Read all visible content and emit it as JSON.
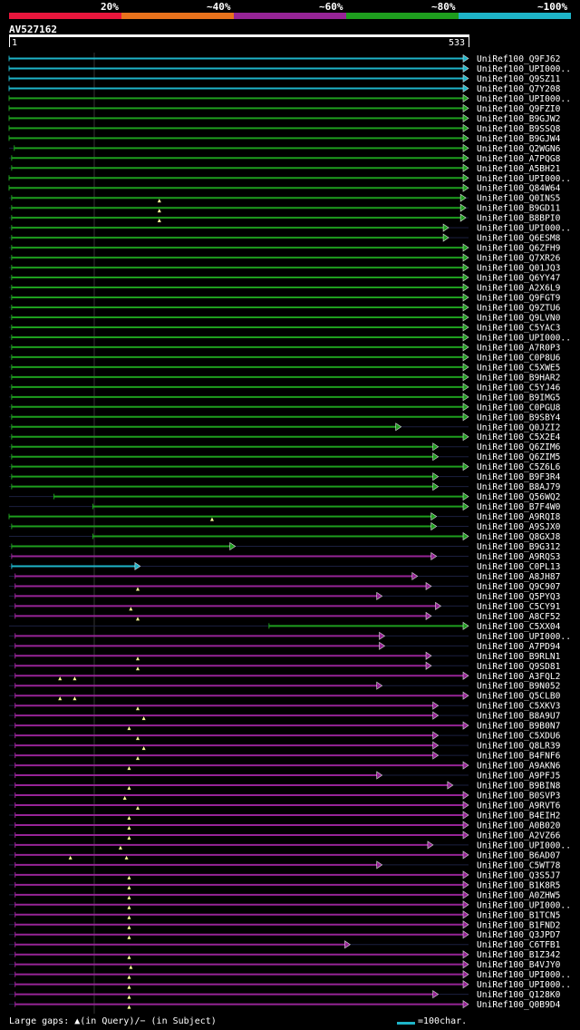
{
  "legend": [
    {
      "label": "20%",
      "color": "#e8163c"
    },
    {
      "label": "~40%",
      "color": "#e8721c"
    },
    {
      "label": "~60%",
      "color": "#962496"
    },
    {
      "label": "~80%",
      "color": "#1e9e1e"
    },
    {
      "label": "~100%",
      "color": "#1eb4c8"
    }
  ],
  "query": {
    "name": "AV527162",
    "start": "1",
    "end": "533"
  },
  "chart_data": {
    "type": "alignment-overview",
    "title": "AV527162",
    "query_length": 533,
    "hits": [
      {
        "name": "UniRef100_Q9FJ62",
        "color": "#1eb4c8",
        "start": 1,
        "end": 533,
        "gaps": []
      },
      {
        "name": "UniRef100_UPI000..",
        "color": "#1eb4c8",
        "start": 1,
        "end": 533,
        "gaps": []
      },
      {
        "name": "UniRef100_Q9SZ11",
        "color": "#1eb4c8",
        "start": 1,
        "end": 533,
        "gaps": []
      },
      {
        "name": "UniRef100_Q7Y208",
        "color": "#1eb4c8",
        "start": 1,
        "end": 533,
        "gaps": []
      },
      {
        "name": "UniRef100_UPI000..",
        "color": "#1e9e1e",
        "start": 1,
        "end": 533,
        "gaps": []
      },
      {
        "name": "UniRef100_Q9FZI0",
        "color": "#1e9e1e",
        "start": 1,
        "end": 533,
        "gaps": []
      },
      {
        "name": "UniRef100_B9GJW2",
        "color": "#1e9e1e",
        "start": 1,
        "end": 533,
        "gaps": []
      },
      {
        "name": "UniRef100_B9SSQ8",
        "color": "#1e9e1e",
        "start": 1,
        "end": 533,
        "gaps": []
      },
      {
        "name": "UniRef100_B9GJW4",
        "color": "#1e9e1e",
        "start": 1,
        "end": 533,
        "gaps": []
      },
      {
        "name": "UniRef100_Q2WGN6",
        "color": "#1e9e1e",
        "start": 7,
        "end": 533,
        "gaps": []
      },
      {
        "name": "UniRef100_A7PQG8",
        "color": "#1e9e1e",
        "start": 4,
        "end": 533,
        "gaps": []
      },
      {
        "name": "UniRef100_A5BH21",
        "color": "#1e9e1e",
        "start": 4,
        "end": 533,
        "gaps": []
      },
      {
        "name": "UniRef100_UPI000..",
        "color": "#1e9e1e",
        "start": 1,
        "end": 533,
        "gaps": []
      },
      {
        "name": "UniRef100_Q84W64",
        "color": "#1e9e1e",
        "start": 1,
        "end": 533,
        "gaps": []
      },
      {
        "name": "UniRef100_Q0INS5",
        "color": "#1e9e1e",
        "start": 4,
        "end": 530,
        "gaps": [
          175
        ]
      },
      {
        "name": "UniRef100_B9GD11",
        "color": "#1e9e1e",
        "start": 4,
        "end": 530,
        "gaps": [
          175
        ]
      },
      {
        "name": "UniRef100_B8BPI0",
        "color": "#1e9e1e",
        "start": 4,
        "end": 530,
        "gaps": [
          175
        ]
      },
      {
        "name": "UniRef100_UPI000..",
        "color": "#1e9e1e",
        "start": 4,
        "end": 510,
        "gaps": []
      },
      {
        "name": "UniRef100_Q6ESM8",
        "color": "#1e9e1e",
        "start": 4,
        "end": 510,
        "gaps": []
      },
      {
        "name": "UniRef100_Q6ZFH9",
        "color": "#1e9e1e",
        "start": 4,
        "end": 533,
        "gaps": []
      },
      {
        "name": "UniRef100_Q7XR26",
        "color": "#1e9e1e",
        "start": 4,
        "end": 533,
        "gaps": []
      },
      {
        "name": "UniRef100_Q01JQ3",
        "color": "#1e9e1e",
        "start": 4,
        "end": 533,
        "gaps": []
      },
      {
        "name": "UniRef100_Q6YY47",
        "color": "#1e9e1e",
        "start": 4,
        "end": 533,
        "gaps": []
      },
      {
        "name": "UniRef100_A2X6L9",
        "color": "#1e9e1e",
        "start": 4,
        "end": 533,
        "gaps": []
      },
      {
        "name": "UniRef100_Q9FGT9",
        "color": "#1e9e1e",
        "start": 4,
        "end": 533,
        "gaps": []
      },
      {
        "name": "UniRef100_Q9ZTU6",
        "color": "#1e9e1e",
        "start": 4,
        "end": 533,
        "gaps": []
      },
      {
        "name": "UniRef100_Q9LVN0",
        "color": "#1e9e1e",
        "start": 4,
        "end": 533,
        "gaps": []
      },
      {
        "name": "UniRef100_C5YAC3",
        "color": "#1e9e1e",
        "start": 4,
        "end": 533,
        "gaps": []
      },
      {
        "name": "UniRef100_UPI000..",
        "color": "#1e9e1e",
        "start": 4,
        "end": 533,
        "gaps": []
      },
      {
        "name": "UniRef100_A7R0P3",
        "color": "#1e9e1e",
        "start": 4,
        "end": 533,
        "gaps": []
      },
      {
        "name": "UniRef100_C0P8U6",
        "color": "#1e9e1e",
        "start": 4,
        "end": 533,
        "gaps": []
      },
      {
        "name": "UniRef100_C5XWE5",
        "color": "#1e9e1e",
        "start": 4,
        "end": 533,
        "gaps": []
      },
      {
        "name": "UniRef100_B9HAR2",
        "color": "#1e9e1e",
        "start": 4,
        "end": 533,
        "gaps": []
      },
      {
        "name": "UniRef100_C5YJ46",
        "color": "#1e9e1e",
        "start": 4,
        "end": 533,
        "gaps": []
      },
      {
        "name": "UniRef100_B9IMG5",
        "color": "#1e9e1e",
        "start": 4,
        "end": 533,
        "gaps": []
      },
      {
        "name": "UniRef100_C0PGU8",
        "color": "#1e9e1e",
        "start": 4,
        "end": 533,
        "gaps": []
      },
      {
        "name": "UniRef100_B9SBY4",
        "color": "#1e9e1e",
        "start": 4,
        "end": 533,
        "gaps": []
      },
      {
        "name": "UniRef100_Q0JZI2",
        "color": "#1e9e1e",
        "start": 4,
        "end": 455,
        "gaps": []
      },
      {
        "name": "UniRef100_C5X2E4",
        "color": "#1e9e1e",
        "start": 4,
        "end": 533,
        "gaps": []
      },
      {
        "name": "UniRef100_Q6ZIM6",
        "color": "#1e9e1e",
        "start": 4,
        "end": 498,
        "gaps": []
      },
      {
        "name": "UniRef100_Q6ZIM5",
        "color": "#1e9e1e",
        "start": 4,
        "end": 498,
        "gaps": []
      },
      {
        "name": "UniRef100_C5Z6L6",
        "color": "#1e9e1e",
        "start": 4,
        "end": 533,
        "gaps": []
      },
      {
        "name": "UniRef100_B9F3R4",
        "color": "#1e9e1e",
        "start": 4,
        "end": 498,
        "gaps": []
      },
      {
        "name": "UniRef100_B8AJ79",
        "color": "#1e9e1e",
        "start": 4,
        "end": 498,
        "gaps": []
      },
      {
        "name": "UniRef100_Q56WQ2",
        "color": "#1e9e1e",
        "start": 53,
        "end": 533,
        "gaps": []
      },
      {
        "name": "UniRef100_B7F4W0",
        "color": "#1e9e1e",
        "start": 98,
        "end": 533,
        "gaps": []
      },
      {
        "name": "UniRef100_A9RQI8",
        "color": "#1e9e1e",
        "start": 1,
        "end": 496,
        "gaps": [
          236
        ]
      },
      {
        "name": "UniRef100_A9SJX0",
        "color": "#1e9e1e",
        "start": 4,
        "end": 496,
        "gaps": []
      },
      {
        "name": "UniRef100_Q8GXJ8",
        "color": "#1e9e1e",
        "start": 98,
        "end": 533,
        "gaps": []
      },
      {
        "name": "UniRef100_B9G312",
        "color": "#1e9e1e",
        "start": 4,
        "end": 263,
        "gaps": []
      },
      {
        "name": "UniRef100_A9RQS3",
        "color": "#962496",
        "start": 4,
        "end": 496,
        "gaps": []
      },
      {
        "name": "UniRef100_C0PL13",
        "color": "#1eb4c8",
        "start": 4,
        "end": 153,
        "gaps": []
      },
      {
        "name": "UniRef100_A8JH87",
        "color": "#962496",
        "start": 8,
        "end": 474,
        "gaps": []
      },
      {
        "name": "UniRef100_Q9C907",
        "color": "#962496",
        "start": 8,
        "end": 490,
        "gaps": [
          150
        ]
      },
      {
        "name": "UniRef100_Q5PYQ3",
        "color": "#962496",
        "start": 8,
        "end": 433,
        "gaps": []
      },
      {
        "name": "UniRef100_C5CY91",
        "color": "#962496",
        "start": 8,
        "end": 501,
        "gaps": [
          142
        ]
      },
      {
        "name": "UniRef100_A8CF52",
        "color": "#962496",
        "start": 8,
        "end": 490,
        "gaps": [
          150
        ]
      },
      {
        "name": "UniRef100_C5XX04",
        "color": "#1e9e1e",
        "start": 302,
        "end": 533,
        "gaps": []
      },
      {
        "name": "UniRef100_UPI000..",
        "color": "#962496",
        "start": 8,
        "end": 436,
        "gaps": []
      },
      {
        "name": "UniRef100_A7PD94",
        "color": "#962496",
        "start": 8,
        "end": 436,
        "gaps": []
      },
      {
        "name": "UniRef100_B9RLN1",
        "color": "#962496",
        "start": 8,
        "end": 490,
        "gaps": [
          150
        ]
      },
      {
        "name": "UniRef100_Q9SD81",
        "color": "#962496",
        "start": 8,
        "end": 490,
        "gaps": [
          150
        ]
      },
      {
        "name": "UniRef100_A3FQL2",
        "color": "#962496",
        "start": 8,
        "end": 533,
        "gaps": [
          60,
          77
        ]
      },
      {
        "name": "UniRef100_B9N052",
        "color": "#962496",
        "start": 8,
        "end": 433,
        "gaps": []
      },
      {
        "name": "UniRef100_Q5CLB0",
        "color": "#962496",
        "start": 8,
        "end": 533,
        "gaps": [
          60,
          77
        ]
      },
      {
        "name": "UniRef100_C5XKV3",
        "color": "#962496",
        "start": 8,
        "end": 498,
        "gaps": [
          150
        ]
      },
      {
        "name": "UniRef100_B8A9U7",
        "color": "#962496",
        "start": 8,
        "end": 498,
        "gaps": [
          157
        ]
      },
      {
        "name": "UniRef100_B9B0N7",
        "color": "#962496",
        "start": 8,
        "end": 533,
        "gaps": [
          140
        ]
      },
      {
        "name": "UniRef100_C5XDU6",
        "color": "#962496",
        "start": 8,
        "end": 498,
        "gaps": [
          150
        ]
      },
      {
        "name": "UniRef100_Q8LR39",
        "color": "#962496",
        "start": 8,
        "end": 498,
        "gaps": [
          157
        ]
      },
      {
        "name": "UniRef100_B4FNF6",
        "color": "#962496",
        "start": 8,
        "end": 498,
        "gaps": [
          150
        ]
      },
      {
        "name": "UniRef100_A9AKN6",
        "color": "#962496",
        "start": 8,
        "end": 533,
        "gaps": [
          140
        ]
      },
      {
        "name": "UniRef100_A9PFJ5",
        "color": "#962496",
        "start": 8,
        "end": 433,
        "gaps": []
      },
      {
        "name": "UniRef100_B9BIN8",
        "color": "#962496",
        "start": 8,
        "end": 515,
        "gaps": [
          140
        ]
      },
      {
        "name": "UniRef100_B0SVP3",
        "color": "#962496",
        "start": 8,
        "end": 533,
        "gaps": [
          135
        ]
      },
      {
        "name": "UniRef100_A9RVT6",
        "color": "#962496",
        "start": 8,
        "end": 533,
        "gaps": [
          150
        ]
      },
      {
        "name": "UniRef100_B4EIH2",
        "color": "#962496",
        "start": 8,
        "end": 533,
        "gaps": [
          140
        ]
      },
      {
        "name": "UniRef100_A0B020",
        "color": "#962496",
        "start": 8,
        "end": 533,
        "gaps": [
          140
        ]
      },
      {
        "name": "UniRef100_A2VZ66",
        "color": "#962496",
        "start": 8,
        "end": 533,
        "gaps": [
          140
        ]
      },
      {
        "name": "UniRef100_UPI000..",
        "color": "#962496",
        "start": 8,
        "end": 492,
        "gaps": [
          130
        ]
      },
      {
        "name": "UniRef100_B6AD07",
        "color": "#962496",
        "start": 8,
        "end": 533,
        "gaps": [
          72,
          137
        ]
      },
      {
        "name": "UniRef100_C5WT78",
        "color": "#962496",
        "start": 8,
        "end": 433,
        "gaps": []
      },
      {
        "name": "UniRef100_Q3S5J7",
        "color": "#962496",
        "start": 8,
        "end": 533,
        "gaps": [
          140
        ]
      },
      {
        "name": "UniRef100_B1K8R5",
        "color": "#962496",
        "start": 8,
        "end": 533,
        "gaps": [
          140
        ]
      },
      {
        "name": "UniRef100_A0ZHW5",
        "color": "#962496",
        "start": 8,
        "end": 533,
        "gaps": [
          140
        ]
      },
      {
        "name": "UniRef100_UPI000..",
        "color": "#962496",
        "start": 8,
        "end": 533,
        "gaps": [
          140
        ]
      },
      {
        "name": "UniRef100_B1TCN5",
        "color": "#962496",
        "start": 8,
        "end": 533,
        "gaps": [
          140
        ]
      },
      {
        "name": "UniRef100_B1FND2",
        "color": "#962496",
        "start": 8,
        "end": 533,
        "gaps": [
          140
        ]
      },
      {
        "name": "UniRef100_Q3JPD7",
        "color": "#962496",
        "start": 8,
        "end": 533,
        "gaps": [
          140
        ]
      },
      {
        "name": "UniRef100_C6TFB1",
        "color": "#962496",
        "start": 8,
        "end": 396,
        "gaps": []
      },
      {
        "name": "UniRef100_B1Z342",
        "color": "#962496",
        "start": 8,
        "end": 533,
        "gaps": [
          140
        ]
      },
      {
        "name": "UniRef100_B4VJY0",
        "color": "#962496",
        "start": 8,
        "end": 533,
        "gaps": [
          142
        ]
      },
      {
        "name": "UniRef100_UPI000..",
        "color": "#962496",
        "start": 8,
        "end": 533,
        "gaps": [
          140
        ]
      },
      {
        "name": "UniRef100_UPI000..",
        "color": "#962496",
        "start": 8,
        "end": 533,
        "gaps": [
          140
        ]
      },
      {
        "name": "UniRef100_Q128K0",
        "color": "#962496",
        "start": 8,
        "end": 498,
        "gaps": [
          140
        ]
      },
      {
        "name": "UniRef100_Q0B9D4",
        "color": "#962496",
        "start": 8,
        "end": 533,
        "gaps": [
          140
        ]
      }
    ]
  },
  "footer": {
    "gaps_label": "Large gaps: ▲(in Query)/− (in Subject)",
    "scale_label": "=100char.",
    "scale_color": "#1eb4c8"
  }
}
